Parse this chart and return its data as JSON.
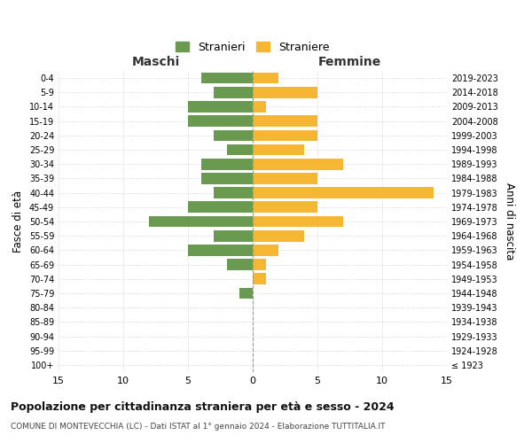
{
  "age_groups": [
    "100+",
    "95-99",
    "90-94",
    "85-89",
    "80-84",
    "75-79",
    "70-74",
    "65-69",
    "60-64",
    "55-59",
    "50-54",
    "45-49",
    "40-44",
    "35-39",
    "30-34",
    "25-29",
    "20-24",
    "15-19",
    "10-14",
    "5-9",
    "0-4"
  ],
  "birth_years": [
    "≤ 1923",
    "1924-1928",
    "1929-1933",
    "1934-1938",
    "1939-1943",
    "1944-1948",
    "1949-1953",
    "1954-1958",
    "1959-1963",
    "1964-1968",
    "1969-1973",
    "1974-1978",
    "1979-1983",
    "1984-1988",
    "1989-1993",
    "1994-1998",
    "1999-2003",
    "2004-2008",
    "2009-2013",
    "2014-2018",
    "2019-2023"
  ],
  "maschi": [
    0,
    0,
    0,
    0,
    0,
    1,
    0,
    2,
    5,
    3,
    8,
    5,
    3,
    4,
    4,
    2,
    3,
    5,
    5,
    3,
    4
  ],
  "femmine": [
    0,
    0,
    0,
    0,
    0,
    0,
    1,
    1,
    2,
    4,
    7,
    5,
    14,
    5,
    7,
    4,
    5,
    5,
    1,
    5,
    2
  ],
  "color_maschi": "#6a9a50",
  "color_femmine": "#f5b731",
  "xlim": 15,
  "title": "Popolazione per cittadinanza straniera per età e sesso - 2024",
  "subtitle": "COMUNE DI MONTEVECCHIA (LC) - Dati ISTAT al 1° gennaio 2024 - Elaborazione TUTTITALIA.IT",
  "legend_maschi": "Stranieri",
  "legend_femmine": "Straniere",
  "xlabel_left": "Maschi",
  "xlabel_right": "Femmine",
  "ylabel_left": "Fasce di età",
  "ylabel_right": "Anni di nascita",
  "bg_color": "#ffffff",
  "grid_color": "#cccccc"
}
